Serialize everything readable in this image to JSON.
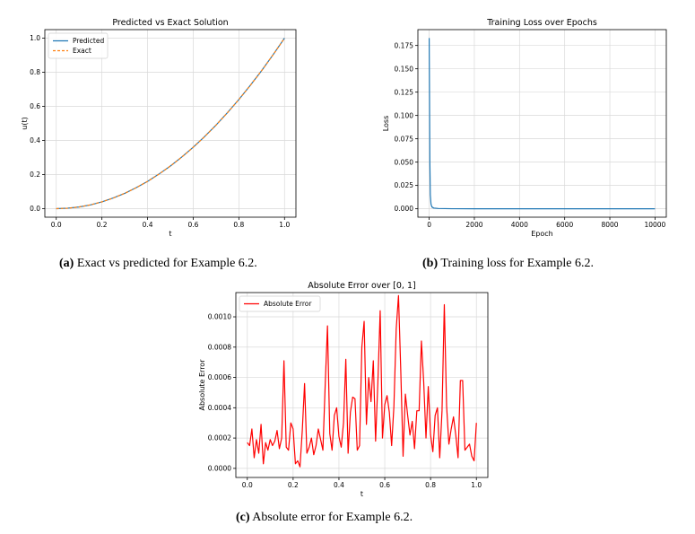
{
  "captions": [
    {
      "tag": "(a)",
      "text": "Exact vs predicted for Example 6.2."
    },
    {
      "tag": "(b)",
      "text": "Training loss for Example 6.2."
    },
    {
      "tag": "(c)",
      "text": "Absolute error for Example 6.2."
    }
  ],
  "colors": {
    "c0": "#1f77b4",
    "c1": "#ff7f0e",
    "red": "#ff0000",
    "grid": "#d9d9d9"
  },
  "chart_data": [
    {
      "type": "line",
      "title": "Predicted vs Exact Solution",
      "xlabel": "t",
      "ylabel": "u(t)",
      "xlim": [
        -0.05,
        1.05
      ],
      "ylim": [
        -0.05,
        1.05
      ],
      "xticks": [
        0.0,
        0.2,
        0.4,
        0.6,
        0.8,
        1.0
      ],
      "xtick_labels": [
        "0.0",
        "0.2",
        "0.4",
        "0.6",
        "0.8",
        "1.0"
      ],
      "yticks": [
        0.0,
        0.2,
        0.4,
        0.6,
        0.8,
        1.0
      ],
      "ytick_labels": [
        "0.0",
        "0.2",
        "0.4",
        "0.6",
        "0.8",
        "1.0"
      ],
      "grid": true,
      "legend": "upper left",
      "x": [
        0.0,
        0.05,
        0.1,
        0.15,
        0.2,
        0.25,
        0.3,
        0.35,
        0.4,
        0.45,
        0.5,
        0.55,
        0.6,
        0.65,
        0.7,
        0.75,
        0.8,
        0.85,
        0.9,
        0.95,
        1.0
      ],
      "series": [
        {
          "name": "Predicted",
          "color": "#1f77b4",
          "style": "solid",
          "values": [
            0.0,
            0.003,
            0.01,
            0.022,
            0.04,
            0.063,
            0.09,
            0.123,
            0.16,
            0.203,
            0.25,
            0.303,
            0.36,
            0.423,
            0.49,
            0.563,
            0.64,
            0.723,
            0.81,
            0.903,
            1.0
          ]
        },
        {
          "name": "Exact",
          "color": "#ff7f0e",
          "style": "dashed",
          "values": [
            0.0,
            0.0025,
            0.01,
            0.0225,
            0.04,
            0.0625,
            0.09,
            0.1225,
            0.16,
            0.2025,
            0.25,
            0.3025,
            0.36,
            0.4225,
            0.49,
            0.5625,
            0.64,
            0.7225,
            0.81,
            0.9025,
            1.0
          ]
        }
      ]
    },
    {
      "type": "line",
      "title": "Training Loss over Epochs",
      "xlabel": "Epoch",
      "ylabel": "Loss",
      "xlim": [
        -500,
        10500
      ],
      "ylim": [
        -0.009,
        0.192
      ],
      "xticks": [
        0,
        2000,
        4000,
        6000,
        8000,
        10000
      ],
      "xtick_labels": [
        "0",
        "2000",
        "4000",
        "6000",
        "8000",
        "10000"
      ],
      "yticks": [
        0.0,
        0.025,
        0.05,
        0.075,
        0.1,
        0.125,
        0.15,
        0.175
      ],
      "ytick_labels": [
        "0.000",
        "0.025",
        "0.050",
        "0.075",
        "0.100",
        "0.125",
        "0.150",
        "0.175"
      ],
      "grid": true,
      "x": [
        0,
        15,
        30,
        50,
        80,
        120,
        200,
        400,
        1000,
        2000,
        4000,
        6000,
        8000,
        10000
      ],
      "series": [
        {
          "color": "#1f77b4",
          "style": "solid",
          "values": [
            0.183,
            0.12,
            0.05,
            0.015,
            0.005,
            0.002,
            0.0008,
            0.0003,
            0.0001,
            0.0,
            0.0,
            0.0,
            0.0,
            0.0
          ]
        }
      ]
    },
    {
      "type": "line",
      "title": "Absolute Error over [0, 1]",
      "xlabel": "t",
      "ylabel": "Absolute Error",
      "xlim": [
        -0.05,
        1.05
      ],
      "ylim": [
        -6e-05,
        0.00116
      ],
      "xticks": [
        0.0,
        0.2,
        0.4,
        0.6,
        0.8,
        1.0
      ],
      "xtick_labels": [
        "0.0",
        "0.2",
        "0.4",
        "0.6",
        "0.8",
        "1.0"
      ],
      "yticks": [
        0.0,
        0.0002,
        0.0004,
        0.0006,
        0.0008,
        0.001
      ],
      "ytick_labels": [
        "0.0000",
        "0.0002",
        "0.0004",
        "0.0006",
        "0.0008",
        "0.0010"
      ],
      "grid": true,
      "legend": "upper left",
      "x": [
        0.0,
        0.01,
        0.02,
        0.03,
        0.04,
        0.05,
        0.06,
        0.07,
        0.08,
        0.09,
        0.1,
        0.11,
        0.12,
        0.13,
        0.14,
        0.15,
        0.16,
        0.17,
        0.18,
        0.19,
        0.2,
        0.21,
        0.22,
        0.23,
        0.24,
        0.25,
        0.26,
        0.27,
        0.28,
        0.29,
        0.3,
        0.31,
        0.32,
        0.33,
        0.34,
        0.35,
        0.36,
        0.37,
        0.38,
        0.39,
        0.4,
        0.41,
        0.42,
        0.43,
        0.44,
        0.45,
        0.46,
        0.47,
        0.48,
        0.49,
        0.5,
        0.51,
        0.52,
        0.53,
        0.54,
        0.55,
        0.56,
        0.57,
        0.58,
        0.59,
        0.6,
        0.61,
        0.62,
        0.63,
        0.64,
        0.65,
        0.66,
        0.67,
        0.68,
        0.69,
        0.7,
        0.71,
        0.72,
        0.73,
        0.74,
        0.75,
        0.76,
        0.77,
        0.78,
        0.79,
        0.8,
        0.81,
        0.82,
        0.83,
        0.84,
        0.85,
        0.86,
        0.87,
        0.88,
        0.89,
        0.9,
        0.91,
        0.92,
        0.93,
        0.94,
        0.95,
        0.96,
        0.97,
        0.98,
        0.99,
        1.0
      ],
      "series": [
        {
          "name": "Absolute Error",
          "color": "#ff0000",
          "style": "solid",
          "values": [
            0.00017,
            0.00015,
            0.00026,
            7e-05,
            0.00019,
            0.0001,
            0.00029,
            3e-05,
            0.00017,
            0.00012,
            0.00019,
            0.00015,
            0.00018,
            0.00025,
            0.00013,
            0.0002,
            0.00071,
            0.00014,
            0.00012,
            0.0003,
            0.00026,
            3e-05,
            5e-05,
            1e-05,
            0.00025,
            0.00056,
            0.0001,
            0.00014,
            0.0002,
            9e-05,
            0.00015,
            0.00026,
            0.00019,
            0.00012,
            0.00055,
            0.00094,
            0.00023,
            0.00012,
            0.00035,
            0.0004,
            0.00021,
            0.00014,
            0.0003,
            0.00072,
            0.0001,
            0.00037,
            0.00047,
            0.00046,
            0.00012,
            0.00015,
            0.0008,
            0.00097,
            0.00029,
            0.0006,
            0.00044,
            0.00071,
            0.00018,
            0.00057,
            0.00104,
            0.0002,
            0.00042,
            0.00048,
            0.00037,
            0.00015,
            0.00041,
            0.00092,
            0.00114,
            0.00064,
            8e-05,
            0.00049,
            0.00035,
            0.00022,
            0.00031,
            0.00013,
            0.00038,
            0.00038,
            0.00084,
            0.00057,
            0.0002,
            0.00054,
            0.00022,
            0.00011,
            0.00035,
            0.0004,
            7e-05,
            0.00038,
            0.00108,
            0.00041,
            0.00016,
            0.00026,
            0.00034,
            0.00022,
            7e-05,
            0.00058,
            0.00058,
            0.00012,
            0.00014,
            0.00016,
            8e-05,
            5e-05,
            0.0003
          ]
        }
      ]
    }
  ]
}
